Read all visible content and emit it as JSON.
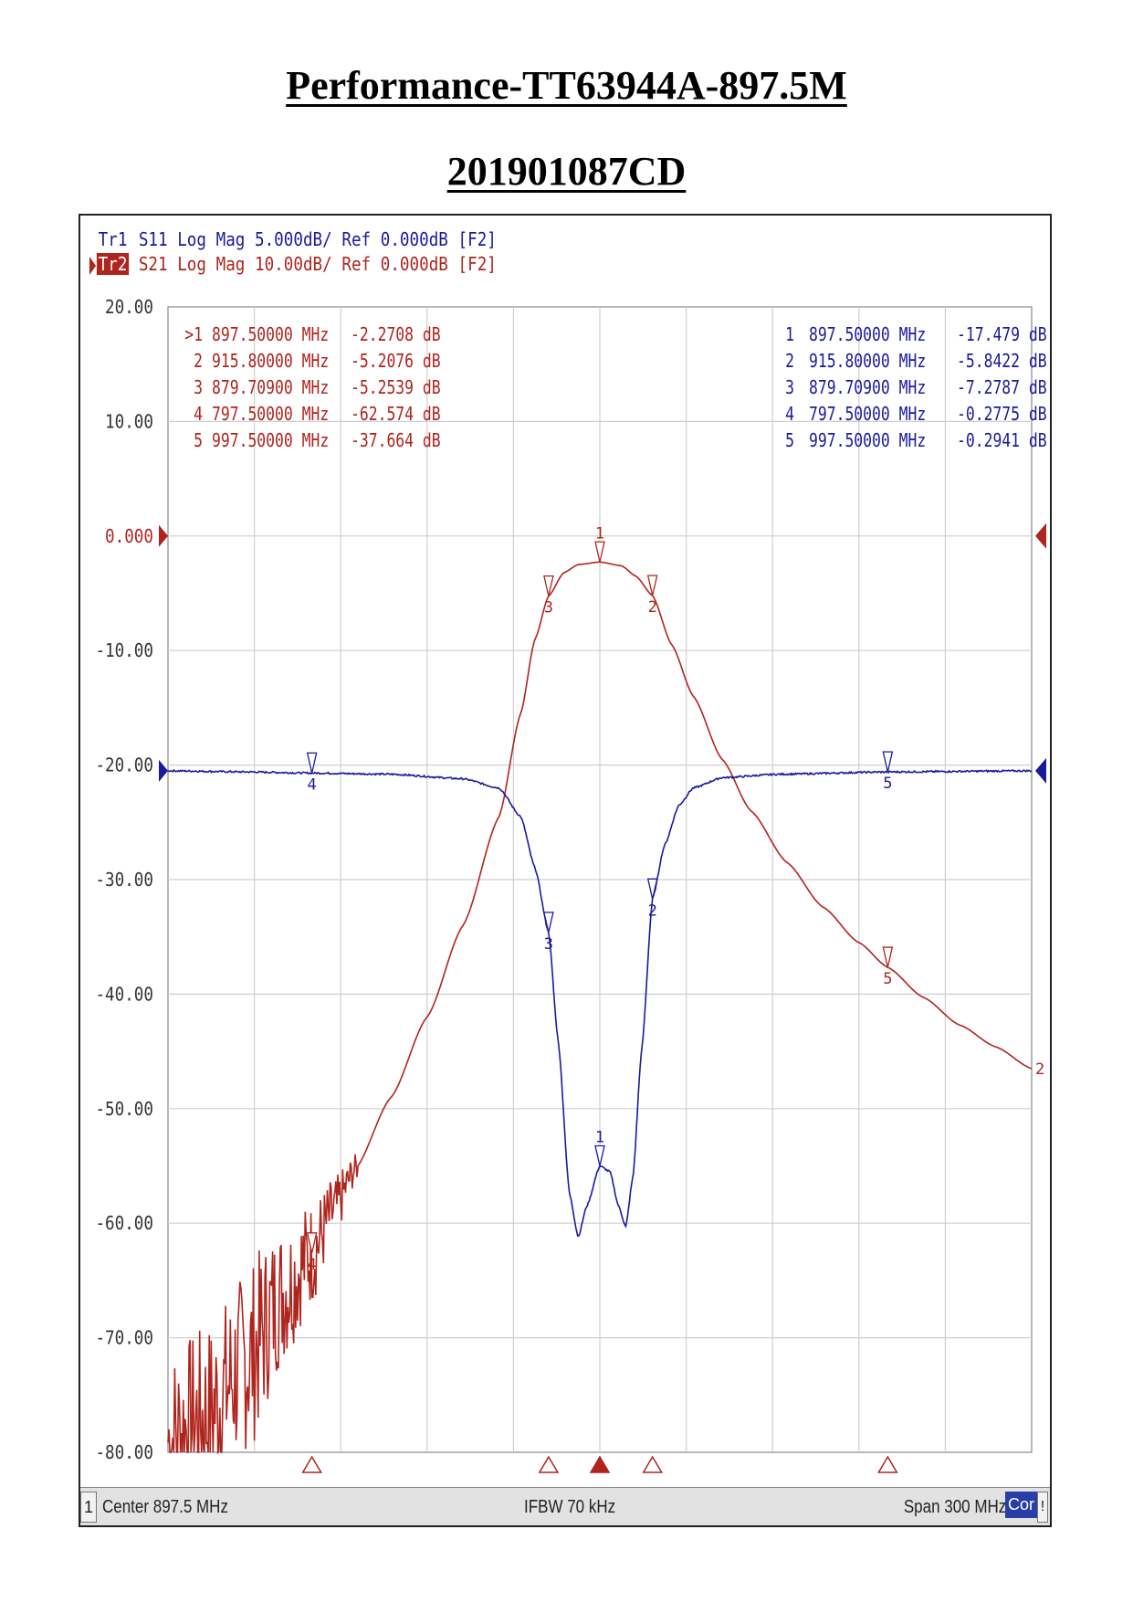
{
  "document": {
    "title": "Performance-TT63944A-897.5M",
    "subtitle": "201901087CD"
  },
  "analyzer": {
    "tr1_header": {
      "badge": "Tr1",
      "text": "S11 Log Mag 5.000dB/ Ref 0.000dB [F2]"
    },
    "tr2_header": {
      "badge": "Tr2",
      "text": "S21 Log Mag 10.00dB/ Ref 0.000dB [F2]"
    },
    "status": {
      "channel": "1",
      "center": "Center 897.5 MHz",
      "ifbw": "IFBW 70 kHz",
      "span": "Span 300 MHz",
      "cor": "Cor",
      "excl": "!"
    },
    "colors": {
      "s21": "#b0241e",
      "s11": "#1a1a9c",
      "grid": "#cfcfcf",
      "frame": "#222222"
    }
  },
  "chart_data": {
    "type": "line",
    "x_unit": "MHz",
    "xlim": [
      747.5,
      1047.5
    ],
    "ylim": [
      -80,
      20
    ],
    "y_ticks": [
      "20.00",
      "10.00",
      "0.000",
      "-10.00",
      "-20.00",
      "-30.00",
      "-40.00",
      "-50.00",
      "-60.00",
      "-70.00",
      "-80.00"
    ],
    "grid": true,
    "series": [
      {
        "name": "S21",
        "color": "#b0241e",
        "points": [
          [
            747.5,
            -79
          ],
          [
            760,
            -77
          ],
          [
            775,
            -72
          ],
          [
            787.5,
            -66
          ],
          [
            797.5,
            -62.6
          ],
          [
            805,
            -59
          ],
          [
            812.5,
            -55.3
          ],
          [
            825,
            -49
          ],
          [
            837.5,
            -42
          ],
          [
            850,
            -34
          ],
          [
            862.5,
            -24.5
          ],
          [
            870,
            -15.5
          ],
          [
            875,
            -9
          ],
          [
            879.7,
            -5.25
          ],
          [
            885,
            -3.2
          ],
          [
            890,
            -2.5
          ],
          [
            897.5,
            -2.27
          ],
          [
            905,
            -2.6
          ],
          [
            910,
            -3.5
          ],
          [
            915.8,
            -5.21
          ],
          [
            922.5,
            -9.5
          ],
          [
            930,
            -14
          ],
          [
            940,
            -19.5
          ],
          [
            950,
            -24
          ],
          [
            962.5,
            -28.5
          ],
          [
            975,
            -32.4
          ],
          [
            987.5,
            -35.5
          ],
          [
            997.5,
            -37.66
          ],
          [
            1010,
            -40.3
          ],
          [
            1022.5,
            -42.7
          ],
          [
            1035,
            -44.6
          ],
          [
            1047.5,
            -46.5
          ]
        ]
      },
      {
        "name": "S11",
        "color": "#1a1a9c",
        "points": [
          [
            747.5,
            -20.5
          ],
          [
            775,
            -20.6
          ],
          [
            797.5,
            -20.7
          ],
          [
            825,
            -20.8
          ],
          [
            850,
            -21.2
          ],
          [
            862.5,
            -22
          ],
          [
            870,
            -24.5
          ],
          [
            875,
            -29
          ],
          [
            879.7,
            -34.6
          ],
          [
            883,
            -44
          ],
          [
            887,
            -57.5
          ],
          [
            890,
            -61.2
          ],
          [
            893,
            -58.5
          ],
          [
            897.5,
            -55
          ],
          [
            901,
            -55.5
          ],
          [
            904,
            -58.5
          ],
          [
            906.5,
            -60.3
          ],
          [
            909,
            -56
          ],
          [
            912,
            -45
          ],
          [
            915.8,
            -31.7
          ],
          [
            920,
            -27
          ],
          [
            925,
            -23.5
          ],
          [
            930,
            -22
          ],
          [
            940,
            -21.1
          ],
          [
            960,
            -20.8
          ],
          [
            997.5,
            -20.6
          ],
          [
            1047.5,
            -20.5
          ]
        ]
      }
    ],
    "markers": {
      "S21": [
        {
          "n": "1",
          "freq": "897.50000 MHz",
          "val": "-2.2708 dB",
          "active": true
        },
        {
          "n": "2",
          "freq": "915.80000 MHz",
          "val": "-5.2076 dB"
        },
        {
          "n": "3",
          "freq": "879.70900 MHz",
          "val": "-5.2539 dB"
        },
        {
          "n": "4",
          "freq": "797.50000 MHz",
          "val": "-62.574 dB"
        },
        {
          "n": "5",
          "freq": "997.50000 MHz",
          "val": "-37.664 dB"
        }
      ],
      "S11": [
        {
          "n": "1",
          "freq": "897.50000 MHz",
          "val": "-17.479 dB"
        },
        {
          "n": "2",
          "freq": "915.80000 MHz",
          "val": "-5.8422 dB"
        },
        {
          "n": "3",
          "freq": "879.70900 MHz",
          "val": "-7.2787 dB"
        },
        {
          "n": "4",
          "freq": "797.50000 MHz",
          "val": "-0.2775 dB"
        },
        {
          "n": "5",
          "freq": "997.50000 MHz",
          "val": "-0.2941 dB"
        }
      ]
    }
  }
}
